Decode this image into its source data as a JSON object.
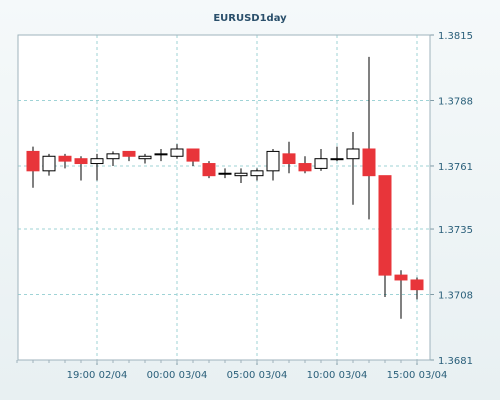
{
  "chart_data": {
    "type": "candlestick",
    "title": "EURUSD1day",
    "ylim": [
      1.3681,
      1.3815
    ],
    "y_ticks": [
      "1.3815",
      "1.3788",
      "1.3761",
      "1.3735",
      "1.3708",
      "1.3681"
    ],
    "x_ticks": [
      "19:00 02/04",
      "00:00 03/04",
      "05:00 03/04",
      "10:00 03/04",
      "15:00 03/04"
    ],
    "grid": true,
    "colors": {
      "up_fill": "#ffffff",
      "down_fill": "#e8353a",
      "outline": "#000000",
      "grid": "#9fd3d6",
      "axis_text": "#2a5f7a",
      "title_text": "#2a4f6b"
    },
    "candles": [
      {
        "o": 1.3767,
        "h": 1.3769,
        "l": 1.3752,
        "c": 1.3759
      },
      {
        "o": 1.3759,
        "h": 1.3766,
        "l": 1.3757,
        "c": 1.3765
      },
      {
        "o": 1.3765,
        "h": 1.3766,
        "l": 1.376,
        "c": 1.3763
      },
      {
        "o": 1.3764,
        "h": 1.3765,
        "l": 1.3755,
        "c": 1.3762
      },
      {
        "o": 1.3762,
        "h": 1.3766,
        "l": 1.3755,
        "c": 1.3764
      },
      {
        "o": 1.3764,
        "h": 1.3767,
        "l": 1.3761,
        "c": 1.3766
      },
      {
        "o": 1.3767,
        "h": 1.3767,
        "l": 1.3763,
        "c": 1.3765
      },
      {
        "o": 1.3764,
        "h": 1.3766,
        "l": 1.3762,
        "c": 1.3765
      },
      {
        "o": 1.3766,
        "h": 1.3768,
        "l": 1.3763,
        "c": 1.3766
      },
      {
        "o": 1.3765,
        "h": 1.377,
        "l": 1.3764,
        "c": 1.3768
      },
      {
        "o": 1.3768,
        "h": 1.3768,
        "l": 1.3761,
        "c": 1.3763
      },
      {
        "o": 1.3762,
        "h": 1.3763,
        "l": 1.3756,
        "c": 1.3757
      },
      {
        "o": 1.3758,
        "h": 1.376,
        "l": 1.3756,
        "c": 1.3758
      },
      {
        "o": 1.3757,
        "h": 1.376,
        "l": 1.3754,
        "c": 1.3758
      },
      {
        "o": 1.3757,
        "h": 1.376,
        "l": 1.3755,
        "c": 1.3759
      },
      {
        "o": 1.3759,
        "h": 1.3768,
        "l": 1.3755,
        "c": 1.3767
      },
      {
        "o": 1.3766,
        "h": 1.3771,
        "l": 1.3758,
        "c": 1.3762
      },
      {
        "o": 1.3762,
        "h": 1.3765,
        "l": 1.3758,
        "c": 1.3759
      },
      {
        "o": 1.376,
        "h": 1.3768,
        "l": 1.3759,
        "c": 1.3764
      },
      {
        "o": 1.3764,
        "h": 1.3769,
        "l": 1.3763,
        "c": 1.3764
      },
      {
        "o": 1.3764,
        "h": 1.3775,
        "l": 1.3745,
        "c": 1.3768
      },
      {
        "o": 1.3768,
        "h": 1.3806,
        "l": 1.3739,
        "c": 1.3757
      },
      {
        "o": 1.3757,
        "h": 1.3757,
        "l": 1.3707,
        "c": 1.3716
      },
      {
        "o": 1.3716,
        "h": 1.3718,
        "l": 1.3698,
        "c": 1.3714
      },
      {
        "o": 1.3714,
        "h": 1.3715,
        "l": 1.3706,
        "c": 1.371
      }
    ]
  }
}
